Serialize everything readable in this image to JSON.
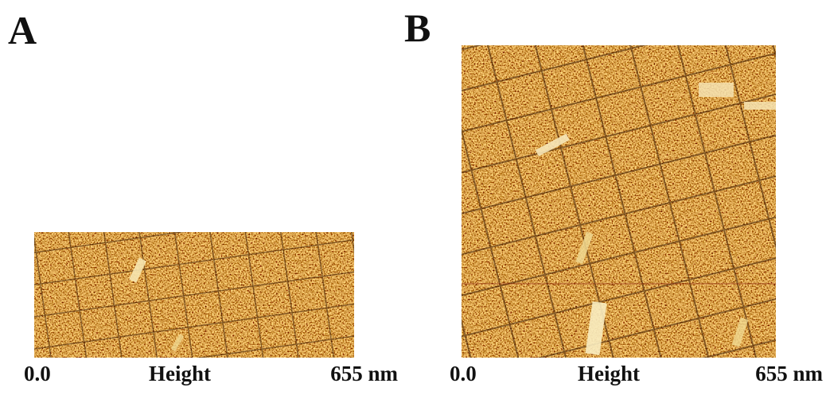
{
  "panels": [
    {
      "label": "A",
      "scale": {
        "min": "0.0",
        "name": "Height",
        "max": "655 nm"
      }
    },
    {
      "label": "B",
      "scale": {
        "min": "0.0",
        "name": "Height",
        "max": "655 nm"
      }
    }
  ]
}
